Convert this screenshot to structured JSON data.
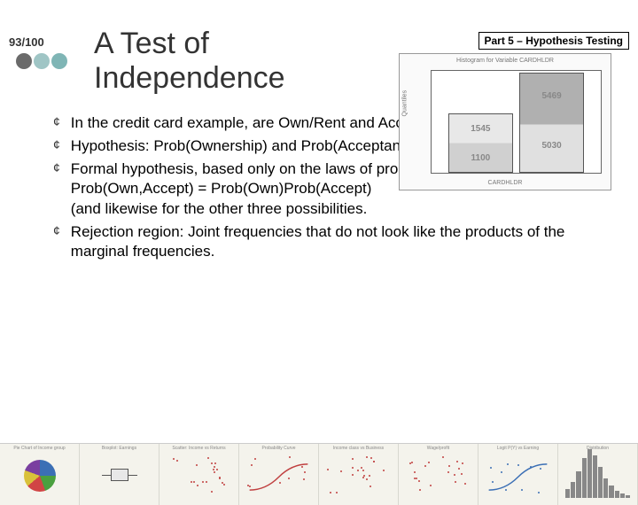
{
  "slide_number": "93/100",
  "part_label": "Part 5 – Hypothesis Testing",
  "title": "A Test of Independence",
  "deco_colors": [
    "#6a6a6a",
    "#9fc5c5",
    "#7fb5b5"
  ],
  "histogram": {
    "title": "Histogram for Variable CARDHLDR",
    "ylabel": "Quantiles",
    "xlabel": "CARDHLDR",
    "background": "#fafafa",
    "plot_background": "#ffffff",
    "border_color": "#666666",
    "bars": [
      {
        "left_pct": 10,
        "width_pct": 38,
        "height_pct": 58,
        "top_fill": "#e8e8e8",
        "bottom_fill": "#d0d0d0",
        "split_pct": 50,
        "top_label": "1545",
        "bottom_label": "1100"
      },
      {
        "left_pct": 52,
        "width_pct": 38,
        "height_pct": 98,
        "top_fill": "#b0b0b0",
        "bottom_fill": "#e0e0e0",
        "split_pct": 52,
        "top_label": "5469",
        "bottom_label": "5030"
      }
    ]
  },
  "bullets": [
    "In the credit card example, are Own/Rent and Accept/Reject independent?",
    "Hypothesis: Prob(Ownership) and Prob(Acceptance) are independent",
    "Formal hypothesis, based only on the laws of probability:\nProb(Own,Accept) = Prob(Own)Prob(Accept)\n(and likewise for the other three possibilities.",
    "Rejection region: Joint frequencies that do not look like the products of the marginal frequencies."
  ],
  "bullet_glyph": "¢",
  "footer": {
    "background": "#f0efe8",
    "thumbs": [
      {
        "type": "pie",
        "title": "Pie Chart of Income group"
      },
      {
        "type": "boxplot",
        "title": "Boxplot: Earnings"
      },
      {
        "type": "scatter",
        "title": "Scatter: Income vs Returns",
        "color": "#c04040"
      },
      {
        "type": "line",
        "title": "Probability Curve",
        "color": "#c04040"
      },
      {
        "type": "scatter",
        "title": "Income class vs Business",
        "color": "#c04040"
      },
      {
        "type": "scatter",
        "title": "Wage/profit",
        "color": "#c04040"
      },
      {
        "type": "line",
        "title": "Logit P(Y) vs Earning",
        "color": "#3b6fb5"
      },
      {
        "type": "hist",
        "title": "Distribution"
      }
    ]
  }
}
